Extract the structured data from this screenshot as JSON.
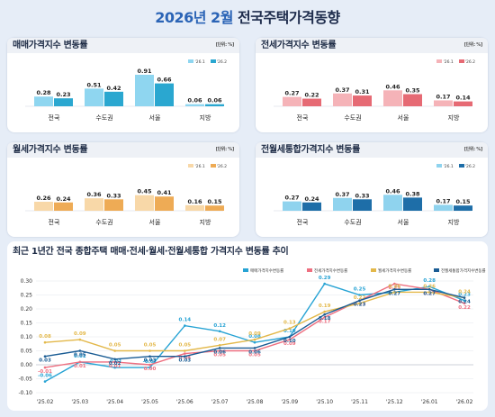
{
  "header": {
    "title_year": "2026년 2월",
    "title_rest": "전국주택가격동향"
  },
  "panels": [
    {
      "title": "매매가격지수 변동률",
      "unit": "[단위: %]",
      "legend": [
        "'26.1",
        "'26.2"
      ],
      "colors": [
        "#8fd6f0",
        "#2aa7d0"
      ],
      "categories": [
        "전국",
        "수도권",
        "서울",
        "지방"
      ],
      "values": [
        [
          0.28,
          0.51,
          0.91,
          0.06
        ],
        [
          0.23,
          0.42,
          0.66,
          0.06
        ]
      ]
    },
    {
      "title": "전세가격지수 변동률",
      "unit": "[단위: %]",
      "legend": [
        "'26.1",
        "'26.2"
      ],
      "colors": [
        "#f5b3b8",
        "#e66a74"
      ],
      "categories": [
        "전국",
        "수도권",
        "서울",
        "지방"
      ],
      "values": [
        [
          0.27,
          0.37,
          0.46,
          0.17
        ],
        [
          0.22,
          0.31,
          0.35,
          0.14
        ]
      ]
    },
    {
      "title": "월세가격지수 변동률",
      "unit": "[단위: %]",
      "legend": [
        "'26.1",
        "'26.2"
      ],
      "colors": [
        "#f8d8a8",
        "#eeab55"
      ],
      "categories": [
        "전국",
        "수도권",
        "서울",
        "지방"
      ],
      "values": [
        [
          0.26,
          0.36,
          0.45,
          0.16
        ],
        [
          0.24,
          0.33,
          0.41,
          0.15
        ]
      ]
    },
    {
      "title": "전월세통합가격지수 변동률",
      "unit": "[단위: %]",
      "legend": [
        "'26.1",
        "'26.2"
      ],
      "colors": [
        "#8fd3ee",
        "#1e6ea8"
      ],
      "categories": [
        "전국",
        "수도권",
        "서울",
        "지방"
      ],
      "values": [
        [
          0.27,
          0.37,
          0.46,
          0.17
        ],
        [
          0.24,
          0.33,
          0.38,
          0.15
        ]
      ]
    }
  ],
  "chart_data": {
    "type": "line",
    "title": "최근 1년간 전국 종합주택 매매·전세·월세·전월세통합 가격지수 변동률 추이",
    "x": [
      "'25.02",
      "'25.03",
      "'25.04",
      "'25.05",
      "'25.06",
      "'25.07",
      "'25.08",
      "'25.09",
      "'25.10",
      "'25.11",
      "'25.12",
      "'26.01",
      "'26.02"
    ],
    "ylim": [
      -0.1,
      0.3
    ],
    "yticks": [
      "0.30",
      "0.25",
      "0.20",
      "0.15",
      "0.10",
      "0.05",
      "0.00",
      "-0.05",
      "-0.10"
    ],
    "series": [
      {
        "name": "매매가격지수변동률",
        "color": "#27a3d4",
        "values": [
          -0.06,
          0.01,
          -0.01,
          -0.01,
          0.14,
          0.12,
          0.08,
          0.1,
          0.29,
          0.25,
          0.26,
          0.28,
          0.23
        ]
      },
      {
        "name": "전세가격지수변동률",
        "color": "#ee6f80",
        "values": [
          -0.01,
          0.01,
          0.01,
          0.0,
          0.04,
          0.05,
          0.05,
          0.09,
          0.17,
          0.23,
          0.29,
          0.27,
          0.22
        ]
      },
      {
        "name": "월세가격지수변동률",
        "color": "#e3b84a",
        "values": [
          0.08,
          0.09,
          0.05,
          0.05,
          0.05,
          0.07,
          0.09,
          0.13,
          0.19,
          0.22,
          0.26,
          0.26,
          0.24
        ]
      },
      {
        "name": "전월세통합가격지수변동률",
        "color": "#1a5c94",
        "values": [
          0.03,
          0.05,
          0.02,
          0.03,
          0.03,
          0.06,
          0.06,
          0.1,
          0.18,
          0.23,
          0.27,
          0.27,
          0.24
        ]
      }
    ]
  }
}
